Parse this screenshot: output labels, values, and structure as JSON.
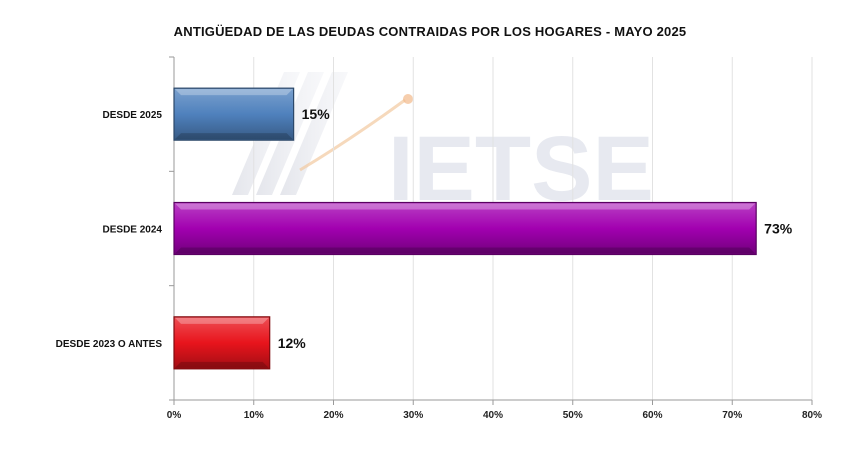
{
  "chart_data": {
    "type": "bar",
    "orientation": "horizontal",
    "title": "ANTIGÜEDAD DE LAS DEUDAS CONTRAIDAS POR LOS HOGARES - MAYO 2025",
    "categories": [
      "DESDE 2025",
      "DESDE 2024",
      "DESDE 2023 O ANTES"
    ],
    "values": [
      15,
      73,
      12
    ],
    "data_labels": [
      "15%",
      "73%",
      "12%"
    ],
    "bar_colors": [
      "#4f81bd",
      "#a200b0",
      "#e8141c"
    ],
    "xlim": [
      0,
      80
    ],
    "x_ticks": [
      0,
      10,
      20,
      30,
      40,
      50,
      60,
      70,
      80
    ],
    "x_tick_labels": [
      "0%",
      "10%",
      "20%",
      "30%",
      "40%",
      "50%",
      "60%",
      "70%",
      "80%"
    ],
    "grid": true,
    "legend": "none",
    "xlabel": "",
    "ylabel": ""
  },
  "watermark": {
    "text": "IETSE"
  }
}
